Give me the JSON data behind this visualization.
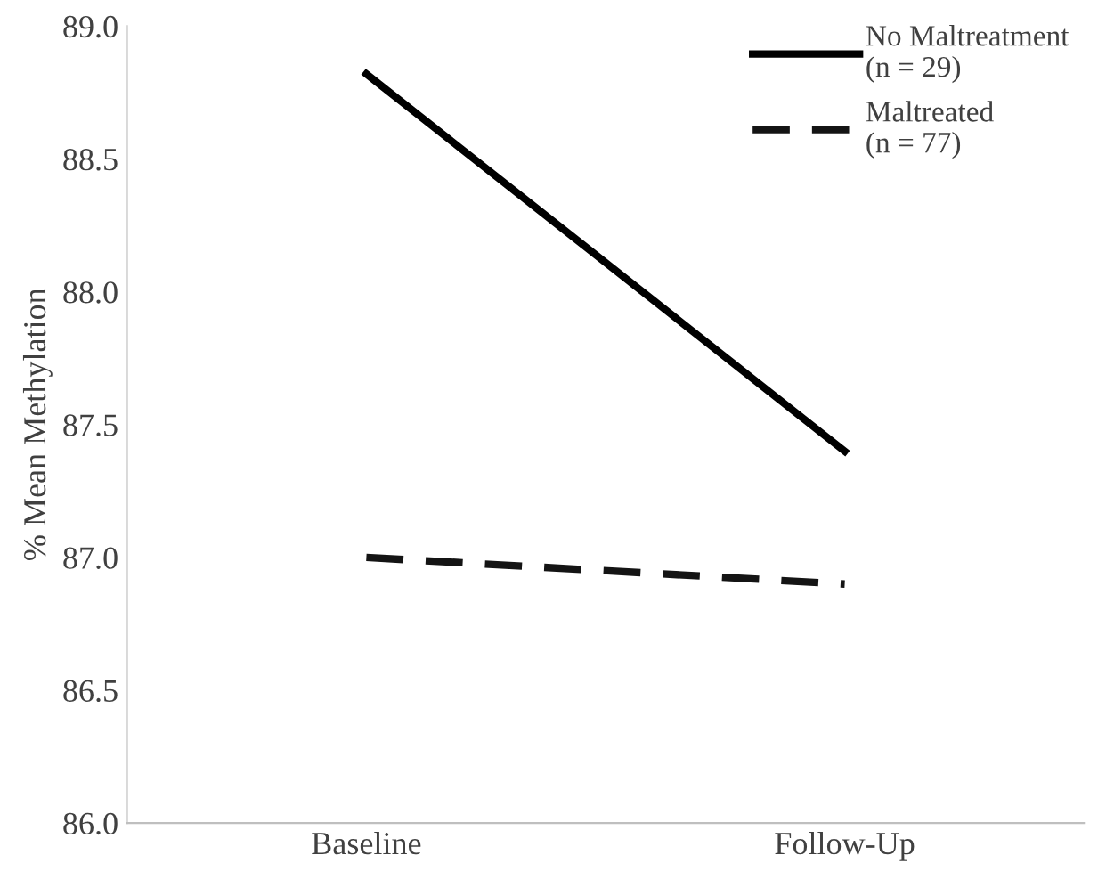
{
  "chart_data": {
    "type": "line",
    "ylabel": "% Mean Methylation",
    "categories": [
      "Baseline",
      "Follow-Up"
    ],
    "series": [
      {
        "name": "No Maltreatment\n(n = 29)",
        "color": "#000000",
        "values": [
          88.82,
          87.4
        ],
        "line_style": "solid"
      },
      {
        "name": "Maltreated\n(n = 77)",
        "color": "#141414",
        "values": [
          87.0,
          86.9
        ],
        "line_style": "dashed"
      }
    ],
    "ylim": [
      86.0,
      89.0
    ],
    "yticks": [
      {
        "value": 86.0,
        "label": "86.0"
      },
      {
        "value": 86.5,
        "label": "86.5"
      },
      {
        "value": 87.0,
        "label": "87.0"
      },
      {
        "value": 87.5,
        "label": "87.5"
      },
      {
        "value": 88.0,
        "label": "88.0"
      },
      {
        "value": 88.5,
        "label": "88.5"
      },
      {
        "value": 89.0,
        "label": "89.0"
      }
    ],
    "grid": false,
    "legend": "top right",
    "marker": "none"
  }
}
